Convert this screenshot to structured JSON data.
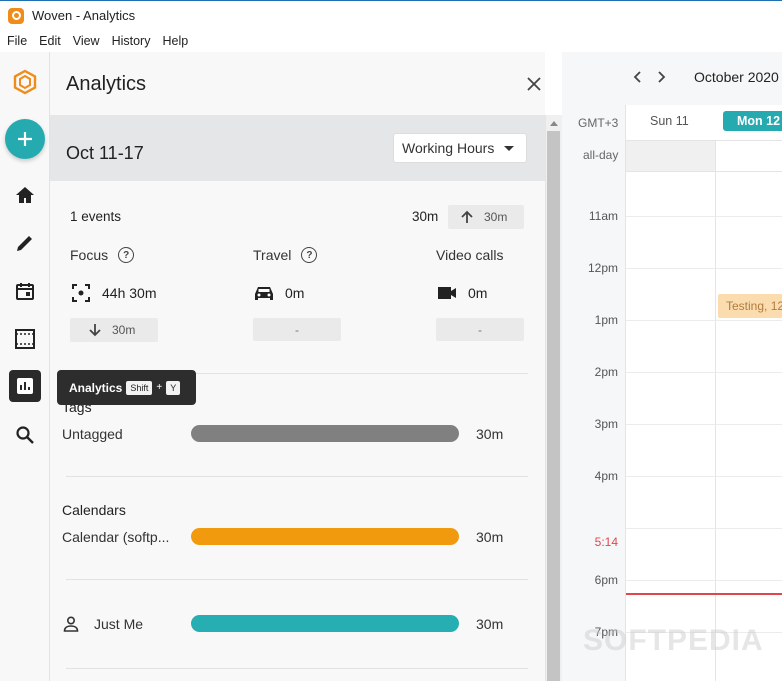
{
  "window": {
    "title": "Woven - Analytics"
  },
  "menu": [
    "File",
    "Edit",
    "View",
    "History",
    "Help"
  ],
  "rail": {
    "tooltip": {
      "label": "Analytics",
      "key1": "Shift",
      "plus": "+",
      "key2": "Y"
    }
  },
  "panel": {
    "title": "Analytics",
    "range": {
      "label": "Oct 11-17",
      "selector": "Working Hours"
    },
    "summary": {
      "events": "1 events",
      "total": "30m",
      "total_delta": "30m"
    },
    "metrics": [
      {
        "label": "Focus",
        "value": "44h 30m",
        "delta": "30m"
      },
      {
        "label": "Travel",
        "value": "0m",
        "delta": "-"
      },
      {
        "label": "Video calls",
        "value": "0m",
        "delta": "-"
      }
    ],
    "tags": {
      "title": "Tags",
      "rows": [
        {
          "label": "Untagged",
          "value": "30m",
          "color": "#808080"
        }
      ]
    },
    "calendars": {
      "title": "Calendars",
      "rows": [
        {
          "label": "Calendar (softp...",
          "value": "30m",
          "color": "#f19a0e"
        }
      ]
    },
    "people": {
      "rows": [
        {
          "label": "Just Me",
          "value": "30m",
          "color": "#26aeb2"
        }
      ]
    }
  },
  "calendar": {
    "month": "October 2020",
    "timezone": "GMT+3",
    "allday": "all-day",
    "days": [
      {
        "label": "Sun 11"
      },
      {
        "label": "Mon 12"
      }
    ],
    "hours": [
      "11am",
      "12pm",
      "1pm",
      "2pm",
      "3pm",
      "4pm",
      "6pm",
      "7pm"
    ],
    "now": "5:14",
    "event": "Testing, 12",
    "watermark": "SOFTPEDIA"
  }
}
